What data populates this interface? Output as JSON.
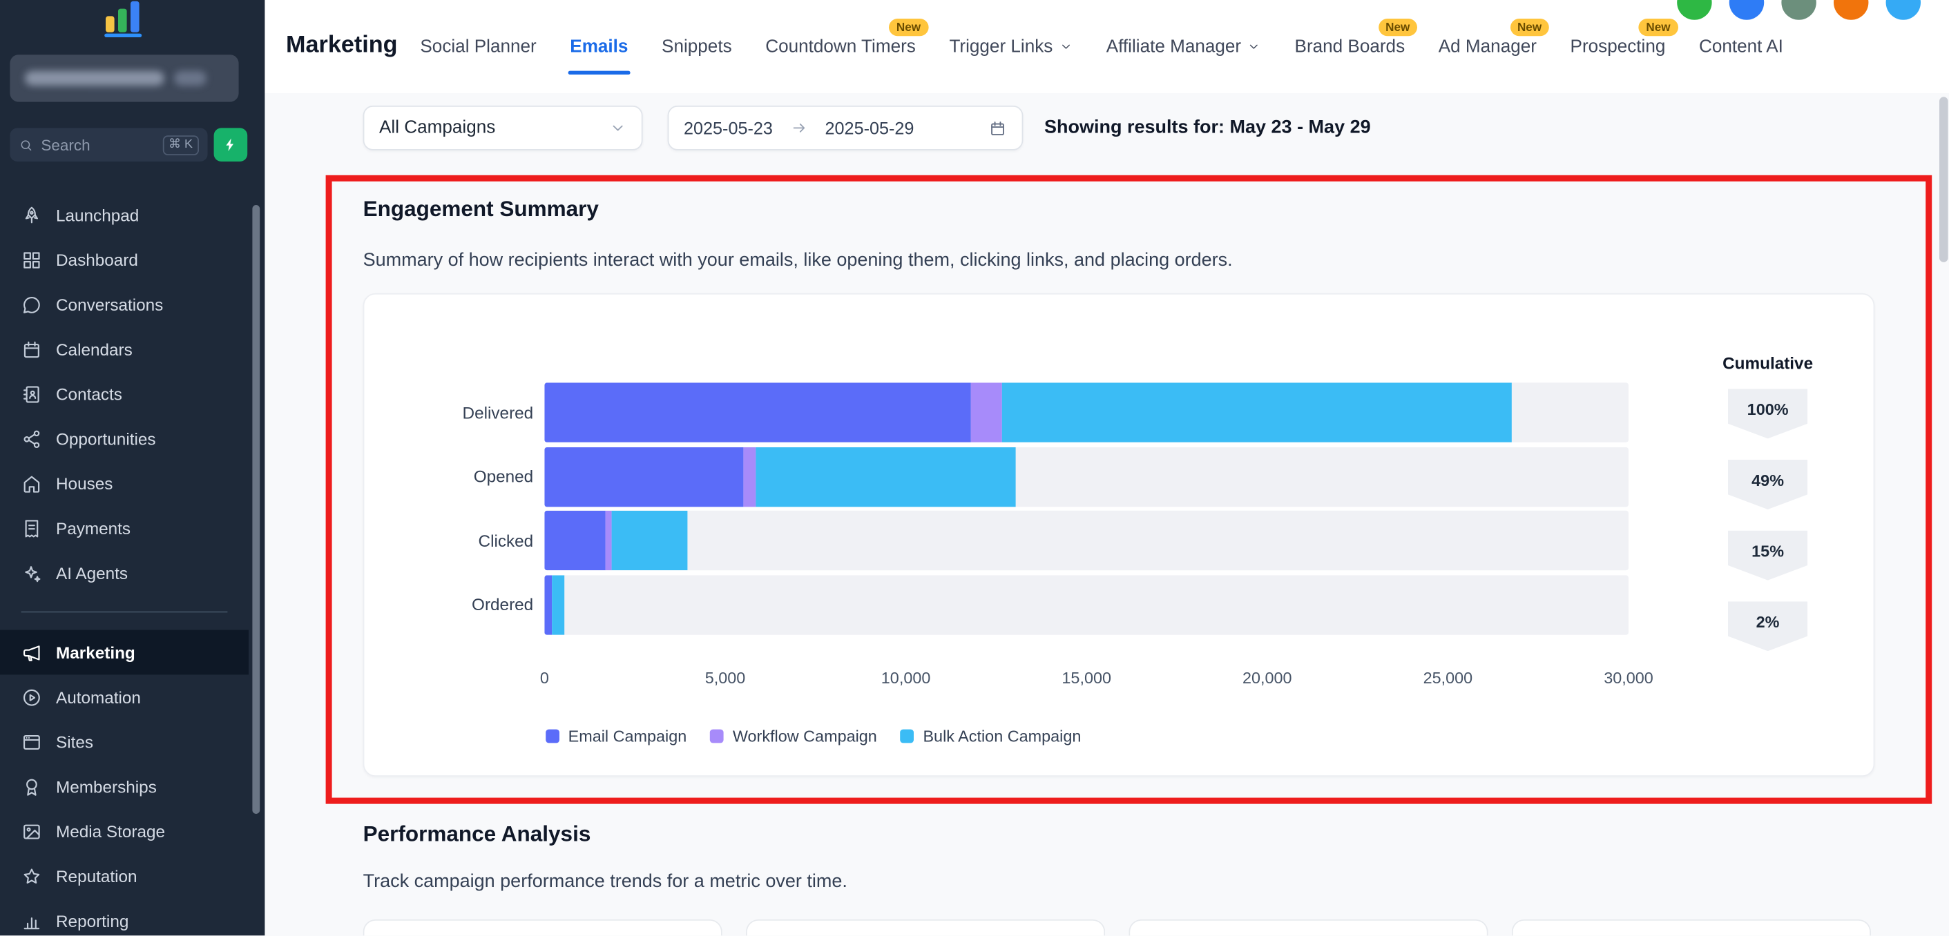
{
  "colors": {
    "accent_blue": "#1A6BE8",
    "badge_yellow": "#FFC53D",
    "badge_text": "#6B4D00",
    "annotation_red": "#EE1D1D",
    "sidebar_bg": "#1E2939",
    "ai_button_green": "#17B26A"
  },
  "topbar": {
    "icons": [
      {
        "name": "help-icon",
        "color": "#2EB844"
      },
      {
        "name": "messages-icon",
        "color": "#2E7CF6"
      },
      {
        "name": "profile-icon",
        "color": "#6C8F7C"
      },
      {
        "name": "notifications-icon",
        "color": "#F1740C"
      },
      {
        "name": "info-icon",
        "color": "#35AAF5"
      }
    ]
  },
  "sidebar": {
    "search": {
      "placeholder": "Search",
      "shortcut": "⌘ K"
    },
    "items": [
      {
        "label": "Launchpad",
        "icon": "rocket-icon"
      },
      {
        "label": "Dashboard",
        "icon": "dashboard-icon"
      },
      {
        "label": "Conversations",
        "icon": "conversations-icon"
      },
      {
        "label": "Calendars",
        "icon": "calendars-icon"
      },
      {
        "label": "Contacts",
        "icon": "contacts-icon"
      },
      {
        "label": "Opportunities",
        "icon": "opportunities-icon"
      },
      {
        "label": "Houses",
        "icon": "houses-icon"
      },
      {
        "label": "Payments",
        "icon": "payments-icon"
      },
      {
        "label": "AI Agents",
        "icon": "ai-agents-icon"
      },
      {
        "label": "Marketing",
        "icon": "marketing-icon",
        "active": true,
        "divider_before": true
      },
      {
        "label": "Automation",
        "icon": "automation-icon"
      },
      {
        "label": "Sites",
        "icon": "sites-icon"
      },
      {
        "label": "Memberships",
        "icon": "memberships-icon"
      },
      {
        "label": "Media Storage",
        "icon": "media-storage-icon"
      },
      {
        "label": "Reputation",
        "icon": "reputation-icon"
      },
      {
        "label": "Reporting",
        "icon": "reporting-icon"
      }
    ]
  },
  "header": {
    "title": "Marketing",
    "tabs": [
      {
        "label": "Social Planner"
      },
      {
        "label": "Emails",
        "active": true
      },
      {
        "label": "Snippets"
      },
      {
        "label": "Countdown Timers",
        "badge": "New"
      },
      {
        "label": "Trigger Links",
        "chevron": true
      },
      {
        "label": "Affiliate Manager",
        "chevron": true
      },
      {
        "label": "Brand Boards",
        "badge": "New"
      },
      {
        "label": "Ad Manager",
        "badge": "New"
      },
      {
        "label": "Prospecting",
        "badge": "New"
      },
      {
        "label": "Content AI"
      }
    ]
  },
  "filters": {
    "campaign_select": "All Campaigns",
    "date_start": "2025-05-23",
    "date_end": "2025-05-29",
    "results_text": "Showing results for: May 23 - May 29"
  },
  "engagement": {
    "title": "Engagement Summary",
    "subtitle": "Summary of how recipients interact with your emails, like opening them, clicking links, and placing orders.",
    "cumulative_label": "Cumulative"
  },
  "performance": {
    "title": "Performance Analysis",
    "subtitle": "Track campaign performance trends for a metric over time.",
    "card_count": 4
  },
  "chart_data": {
    "type": "bar",
    "orientation": "horizontal",
    "stacked": true,
    "title": "Engagement Summary",
    "categories": [
      "Delivered",
      "Opened",
      "Clicked",
      "Ordered"
    ],
    "series": [
      {
        "name": "Email Campaign",
        "color": "#5B6CF9",
        "values": [
          11800,
          5500,
          1700,
          200
        ]
      },
      {
        "name": "Workflow Campaign",
        "color": "#A78BFA",
        "values": [
          850,
          350,
          170,
          0
        ]
      },
      {
        "name": "Bulk Action Campaign",
        "color": "#3BBCF5",
        "values": [
          14100,
          7200,
          2100,
          350
        ]
      }
    ],
    "totals": [
      26750,
      13050,
      3970,
      550
    ],
    "cumulative": [
      "100%",
      "49%",
      "15%",
      "2%"
    ],
    "xticks": [
      "0",
      "5,000",
      "10,000",
      "15,000",
      "20,000",
      "25,000",
      "30,000"
    ],
    "xlim": [
      0,
      30000
    ],
    "legend_position": "bottom",
    "track_color": "#F0F1F5",
    "grid": false
  },
  "annotation": {
    "color": "#EE1D1D"
  }
}
